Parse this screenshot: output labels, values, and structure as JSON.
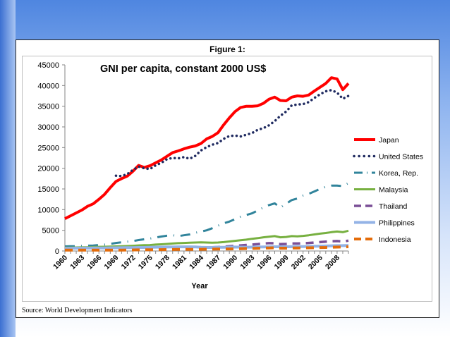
{
  "figure": {
    "title": "Figure 1:",
    "source": "Source: World Development Indicators"
  },
  "chart_data": {
    "type": "line",
    "title": "GNI per capita, constant 2000 US$",
    "xlabel": "Year",
    "ylabel": "",
    "ylim": [
      0,
      45000
    ],
    "yticks": [
      0,
      5000,
      10000,
      15000,
      20000,
      25000,
      30000,
      35000,
      40000,
      45000
    ],
    "x": [
      1960,
      1961,
      1962,
      1963,
      1964,
      1965,
      1966,
      1967,
      1968,
      1969,
      1970,
      1971,
      1972,
      1973,
      1974,
      1975,
      1976,
      1977,
      1978,
      1979,
      1980,
      1981,
      1982,
      1983,
      1984,
      1985,
      1986,
      1987,
      1988,
      1989,
      1990,
      1991,
      1992,
      1993,
      1994,
      1995,
      1996,
      1997,
      1998,
      1999,
      2000,
      2001,
      2002,
      2003,
      2004,
      2005,
      2006,
      2007,
      2008,
      2009,
      2010
    ],
    "xticks": [
      1960,
      1963,
      1966,
      1969,
      1972,
      1975,
      1978,
      1981,
      1984,
      1987,
      1990,
      1993,
      1996,
      1999,
      2002,
      2005,
      2008
    ],
    "legend_position": "right",
    "grid": false,
    "series": [
      {
        "name": "Japan",
        "color": "#ff0000",
        "style": "solid",
        "width": 4,
        "values": [
          7800,
          8500,
          9200,
          9900,
          10800,
          11400,
          12500,
          13700,
          15300,
          16800,
          17500,
          18100,
          19300,
          20700,
          20200,
          20600,
          21300,
          22000,
          22900,
          23800,
          24200,
          24700,
          25100,
          25400,
          26000,
          27100,
          27700,
          28600,
          30500,
          32200,
          33700,
          34700,
          35000,
          35000,
          35100,
          35700,
          36700,
          37200,
          36400,
          36300,
          37200,
          37500,
          37400,
          37700,
          38700,
          39600,
          40500,
          41900,
          41600,
          39000,
          40500
        ]
      },
      {
        "name": "United States",
        "color": "#1f2a60",
        "style": "dotted",
        "width": 3.5,
        "values": [
          null,
          null,
          null,
          null,
          null,
          null,
          null,
          null,
          null,
          18200,
          18100,
          18600,
          19600,
          20400,
          20000,
          19800,
          20700,
          21300,
          22200,
          22500,
          22400,
          22700,
          22300,
          23000,
          24300,
          25100,
          25700,
          26100,
          27100,
          27800,
          27900,
          27700,
          28100,
          28500,
          29300,
          29700,
          30400,
          31400,
          32700,
          33700,
          35200,
          35400,
          35500,
          36000,
          37000,
          37900,
          38600,
          38900,
          38300,
          36800,
          37500
        ]
      },
      {
        "name": "Korea, Rep.",
        "color": "#31849b",
        "style": "dashdot",
        "width": 3,
        "values": [
          1100,
          1150,
          1150,
          1250,
          1300,
          1320,
          1450,
          1550,
          1700,
          1950,
          2100,
          2250,
          2400,
          2650,
          2850,
          3000,
          3250,
          3500,
          3700,
          3800,
          3600,
          3800,
          4000,
          4400,
          4700,
          5000,
          5500,
          6100,
          6700,
          7100,
          7700,
          8300,
          8700,
          9100,
          9800,
          10500,
          11100,
          11500,
          10500,
          11400,
          12300,
          12700,
          13400,
          13800,
          14400,
          15000,
          15500,
          15800,
          15800,
          15700,
          16400
        ]
      },
      {
        "name": "Malaysia",
        "color": "#77b040",
        "style": "solid",
        "width": 3,
        "values": [
          800,
          820,
          850,
          880,
          900,
          950,
          1000,
          1020,
          1050,
          1100,
          1150,
          1200,
          1260,
          1350,
          1420,
          1440,
          1550,
          1620,
          1700,
          1800,
          1900,
          1950,
          2000,
          2050,
          2100,
          2050,
          2000,
          2050,
          2150,
          2300,
          2450,
          2600,
          2750,
          2950,
          3100,
          3300,
          3450,
          3600,
          3300,
          3400,
          3600,
          3550,
          3650,
          3800,
          4000,
          4200,
          4350,
          4550,
          4700,
          4550,
          4900
        ]
      },
      {
        "name": "Thailand",
        "color": "#7a4f96",
        "style": "dashed",
        "width": 3.5,
        "values": [
          300,
          310,
          320,
          340,
          350,
          370,
          400,
          420,
          440,
          460,
          480,
          500,
          510,
          530,
          550,
          580,
          620,
          650,
          700,
          720,
          740,
          760,
          780,
          800,
          830,
          850,
          880,
          950,
          1050,
          1150,
          1250,
          1350,
          1450,
          1550,
          1650,
          1800,
          1900,
          1850,
          1650,
          1700,
          1800,
          1800,
          1850,
          1950,
          2050,
          2150,
          2250,
          2350,
          2400,
          2300,
          2500
        ]
      },
      {
        "name": "Philippines",
        "color": "#93b3e6",
        "style": "solid",
        "width": 4,
        "values": [
          650,
          660,
          680,
          700,
          700,
          720,
          730,
          740,
          760,
          770,
          780,
          800,
          820,
          850,
          860,
          880,
          920,
          940,
          960,
          990,
          1000,
          1000,
          1000,
          990,
          900,
          850,
          860,
          880,
          910,
          940,
          950,
          930,
          920,
          930,
          950,
          970,
          1000,
          1030,
          1020,
          1020,
          1040,
          1050,
          1070,
          1100,
          1150,
          1180,
          1210,
          1260,
          1290,
          1290,
          1350
        ]
      },
      {
        "name": "Indonesia",
        "color": "#e46c0a",
        "style": "dashed",
        "width": 4,
        "values": [
          200,
          205,
          210,
          205,
          210,
          205,
          200,
          200,
          210,
          220,
          230,
          240,
          255,
          270,
          285,
          295,
          310,
          330,
          345,
          355,
          375,
          395,
          395,
          400,
          415,
          425,
          440,
          455,
          475,
          500,
          530,
          560,
          590,
          620,
          660,
          700,
          740,
          780,
          680,
          680,
          710,
          730,
          750,
          770,
          800,
          830,
          860,
          900,
          940,
          970,
          1030
        ]
      }
    ]
  }
}
